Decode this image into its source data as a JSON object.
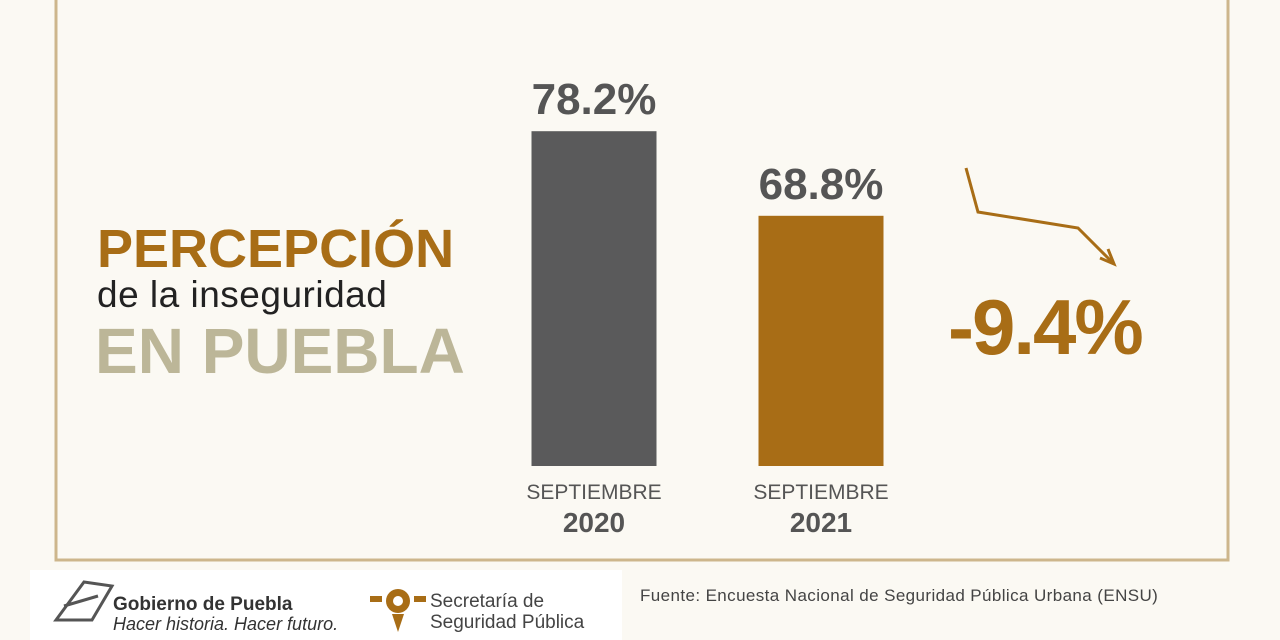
{
  "chart_data": {
    "type": "bar",
    "title": [
      "PERCEPCIÓN",
      "de la inseguridad",
      "EN PUEBLA"
    ],
    "categories": [
      "SEPTIEMBRE\n2020",
      "SEPTIEMBRE\n2021"
    ],
    "values": [
      78.2,
      68.8
    ],
    "value_labels": [
      "78.2%",
      "68.8%"
    ],
    "colors": [
      "#5a5a5b",
      "#a86d16"
    ],
    "ylim": [
      41,
      80
    ],
    "change_label": "-9.4%",
    "source": "Fuente: Encuesta Nacional de Seguridad Pública Urbana (ENSU)"
  },
  "footer": {
    "government": "Gobierno de Puebla",
    "slogan": "Hacer historia. Hacer futuro.",
    "secretariat": [
      "Secretaría de",
      "Seguridad Pública"
    ]
  }
}
